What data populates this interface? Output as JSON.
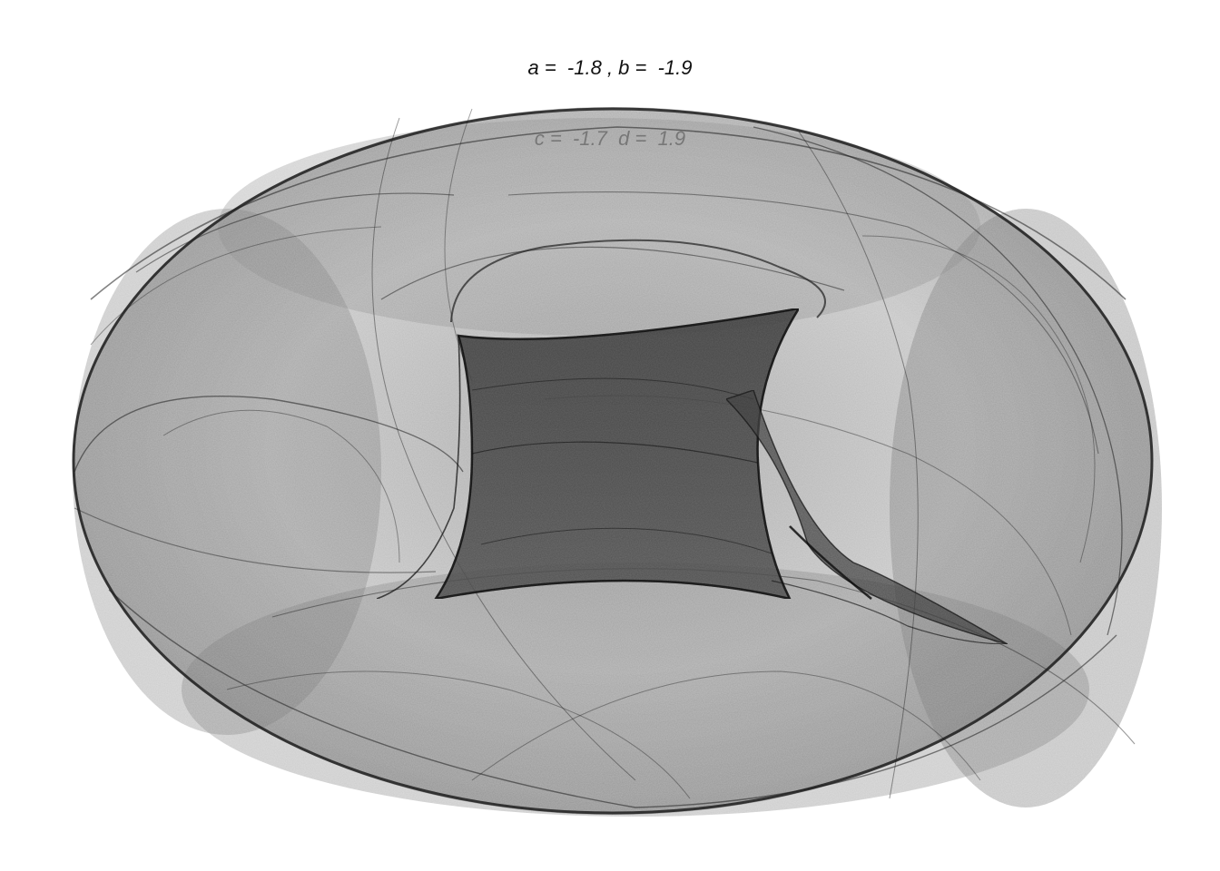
{
  "title": {
    "line1": "a =  -1.8 , b =  -1.9",
    "line2": "c =  -1.7  d =  1.9"
  },
  "parameters": {
    "a": -1.8,
    "b": -1.9,
    "c": -1.7,
    "d": 1.9
  },
  "colors": {
    "background": "#ffffff",
    "ink": "#1e1e1e",
    "fill_light": "#9a9a9a",
    "fill_mid": "#6a6a6a",
    "fill_dark": "#3a3a3a"
  }
}
